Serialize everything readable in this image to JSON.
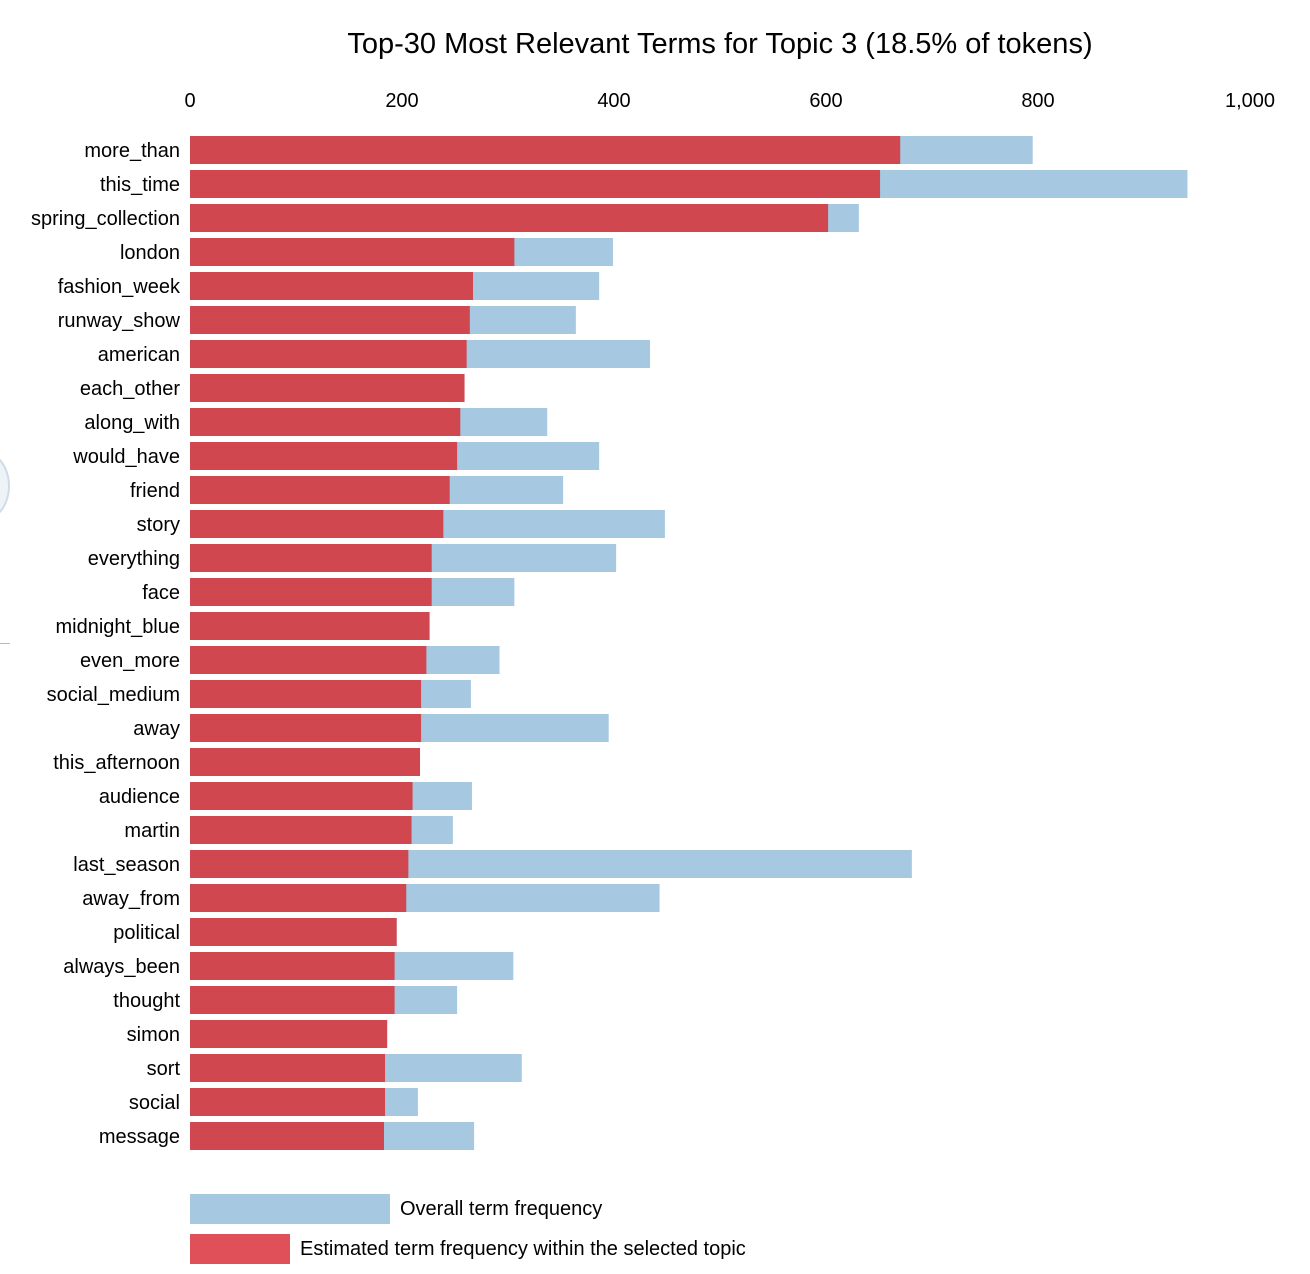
{
  "chart_data": {
    "type": "bar",
    "orientation": "horizontal",
    "stacking": "overlay",
    "title": "Top-30 Most Relevant Terms for Topic 3 (18.5% of tokens)",
    "xlim": [
      0,
      1000
    ],
    "x_ticks": [
      {
        "value": 0,
        "label": "0"
      },
      {
        "value": 200,
        "label": "200"
      },
      {
        "value": 400,
        "label": "400"
      },
      {
        "value": 600,
        "label": "600"
      },
      {
        "value": 800,
        "label": "800"
      },
      {
        "value": 1000,
        "label": "1,000"
      }
    ],
    "x_axis_position": "top",
    "grid": false,
    "legend_position": "bottom-left",
    "categories": [
      "more_than",
      "this_time",
      "spring_collection",
      "london",
      "fashion_week",
      "runway_show",
      "american",
      "each_other",
      "along_with",
      "would_have",
      "friend",
      "story",
      "everything",
      "face",
      "midnight_blue",
      "even_more",
      "social_medium",
      "away",
      "this_afternoon",
      "audience",
      "martin",
      "last_season",
      "away_from",
      "political",
      "always_been",
      "thought",
      "simon",
      "sort",
      "social",
      "message"
    ],
    "series": [
      {
        "name": "Overall term frequency",
        "color": "#a6c8e0",
        "values": [
          795,
          941,
          631,
          399,
          386,
          364,
          434,
          259,
          337,
          386,
          352,
          448,
          402,
          306,
          226,
          292,
          265,
          395,
          217,
          266,
          248,
          681,
          443,
          195,
          305,
          252,
          186,
          313,
          215,
          268
        ]
      },
      {
        "name": "Estimated term frequency within the selected topic",
        "color": "#d0474f",
        "values": [
          670,
          651,
          602,
          306,
          267,
          264,
          261,
          259,
          255,
          252,
          245,
          239,
          228,
          228,
          226,
          223,
          218,
          218,
          217,
          210,
          209,
          206,
          204,
          195,
          193,
          193,
          186,
          184,
          184,
          183
        ]
      }
    ]
  },
  "legend_colors": {
    "overall": "#a6c8e0",
    "topic": "#d0474f",
    "topic_legend": "#e05058"
  }
}
